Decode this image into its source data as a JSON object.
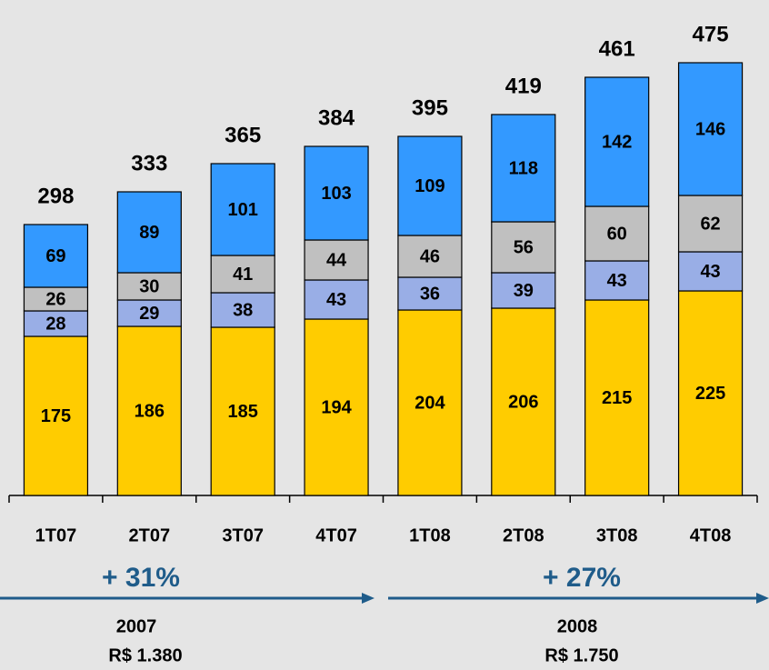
{
  "chart_data": {
    "type": "stacked_bar",
    "categories": [
      "1T07",
      "2T07",
      "3T07",
      "4T07",
      "1T08",
      "2T08",
      "3T08",
      "4T08"
    ],
    "series": [
      {
        "color": "#ffcc00",
        "values": [
          175,
          186,
          185,
          194,
          204,
          206,
          215,
          225
        ]
      },
      {
        "color": "#99aee6",
        "values": [
          28,
          29,
          38,
          43,
          36,
          39,
          43,
          43
        ]
      },
      {
        "color": "#c0c0c0",
        "values": [
          26,
          30,
          41,
          44,
          46,
          56,
          60,
          62
        ]
      },
      {
        "color": "#3399ff",
        "values": [
          69,
          89,
          101,
          103,
          109,
          118,
          142,
          146
        ]
      }
    ],
    "totals": [
      298,
      333,
      365,
      384,
      395,
      419,
      461,
      475
    ],
    "ylim": [
      0,
      500
    ],
    "annotations": [
      {
        "text": "+ 31%"
      },
      {
        "text": "2007"
      },
      {
        "text": "R$ 1.380"
      },
      {
        "text": "+ 27%"
      },
      {
        "text": "2008"
      },
      {
        "text": "R$ 1.750"
      }
    ]
  }
}
